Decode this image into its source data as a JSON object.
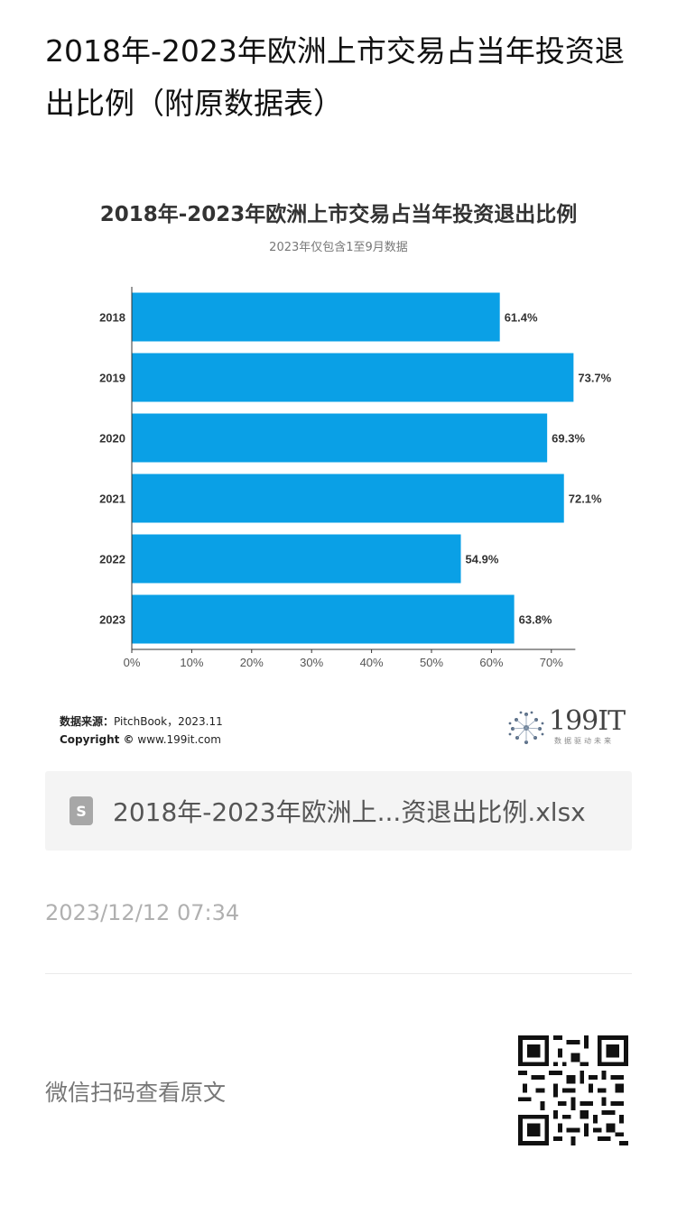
{
  "page": {
    "title": "2018年-2023年欧洲上市交易占当年投资退出比例（附原数据表）"
  },
  "chart_data": {
    "type": "bar",
    "orientation": "horizontal",
    "title": "2018年-2023年欧洲上市交易占当年投资退出比例",
    "subtitle": "2023年仅包含1至9月数据",
    "categories": [
      "2018",
      "2019",
      "2020",
      "2021",
      "2022",
      "2023"
    ],
    "values": [
      61.4,
      73.7,
      69.3,
      72.1,
      54.9,
      63.8
    ],
    "value_labels": [
      "61.4%",
      "73.7%",
      "69.3%",
      "72.1%",
      "54.9%",
      "63.8%"
    ],
    "xticks": [
      "0%",
      "10%",
      "20%",
      "30%",
      "40%",
      "50%",
      "60%",
      "70%"
    ],
    "xlim": [
      0,
      74
    ],
    "bar_color": "#0aa0e6",
    "grid": false,
    "legend": "none"
  },
  "source": {
    "label": "数据来源：",
    "text": "PitchBook，2023.11",
    "copyright_label": "Copyright ©",
    "copyright_text": "www.199it.com"
  },
  "logo": {
    "text": "199IT",
    "tagline": "数据驱动未来"
  },
  "attachment": {
    "icon": "spreadsheet-icon",
    "icon_letter": "S",
    "filename": "2018年-2023年欧洲上...资退出比例.xlsx"
  },
  "timestamp": "2023/12/12 07:34",
  "footer": {
    "scan_text": "微信扫码查看原文"
  }
}
